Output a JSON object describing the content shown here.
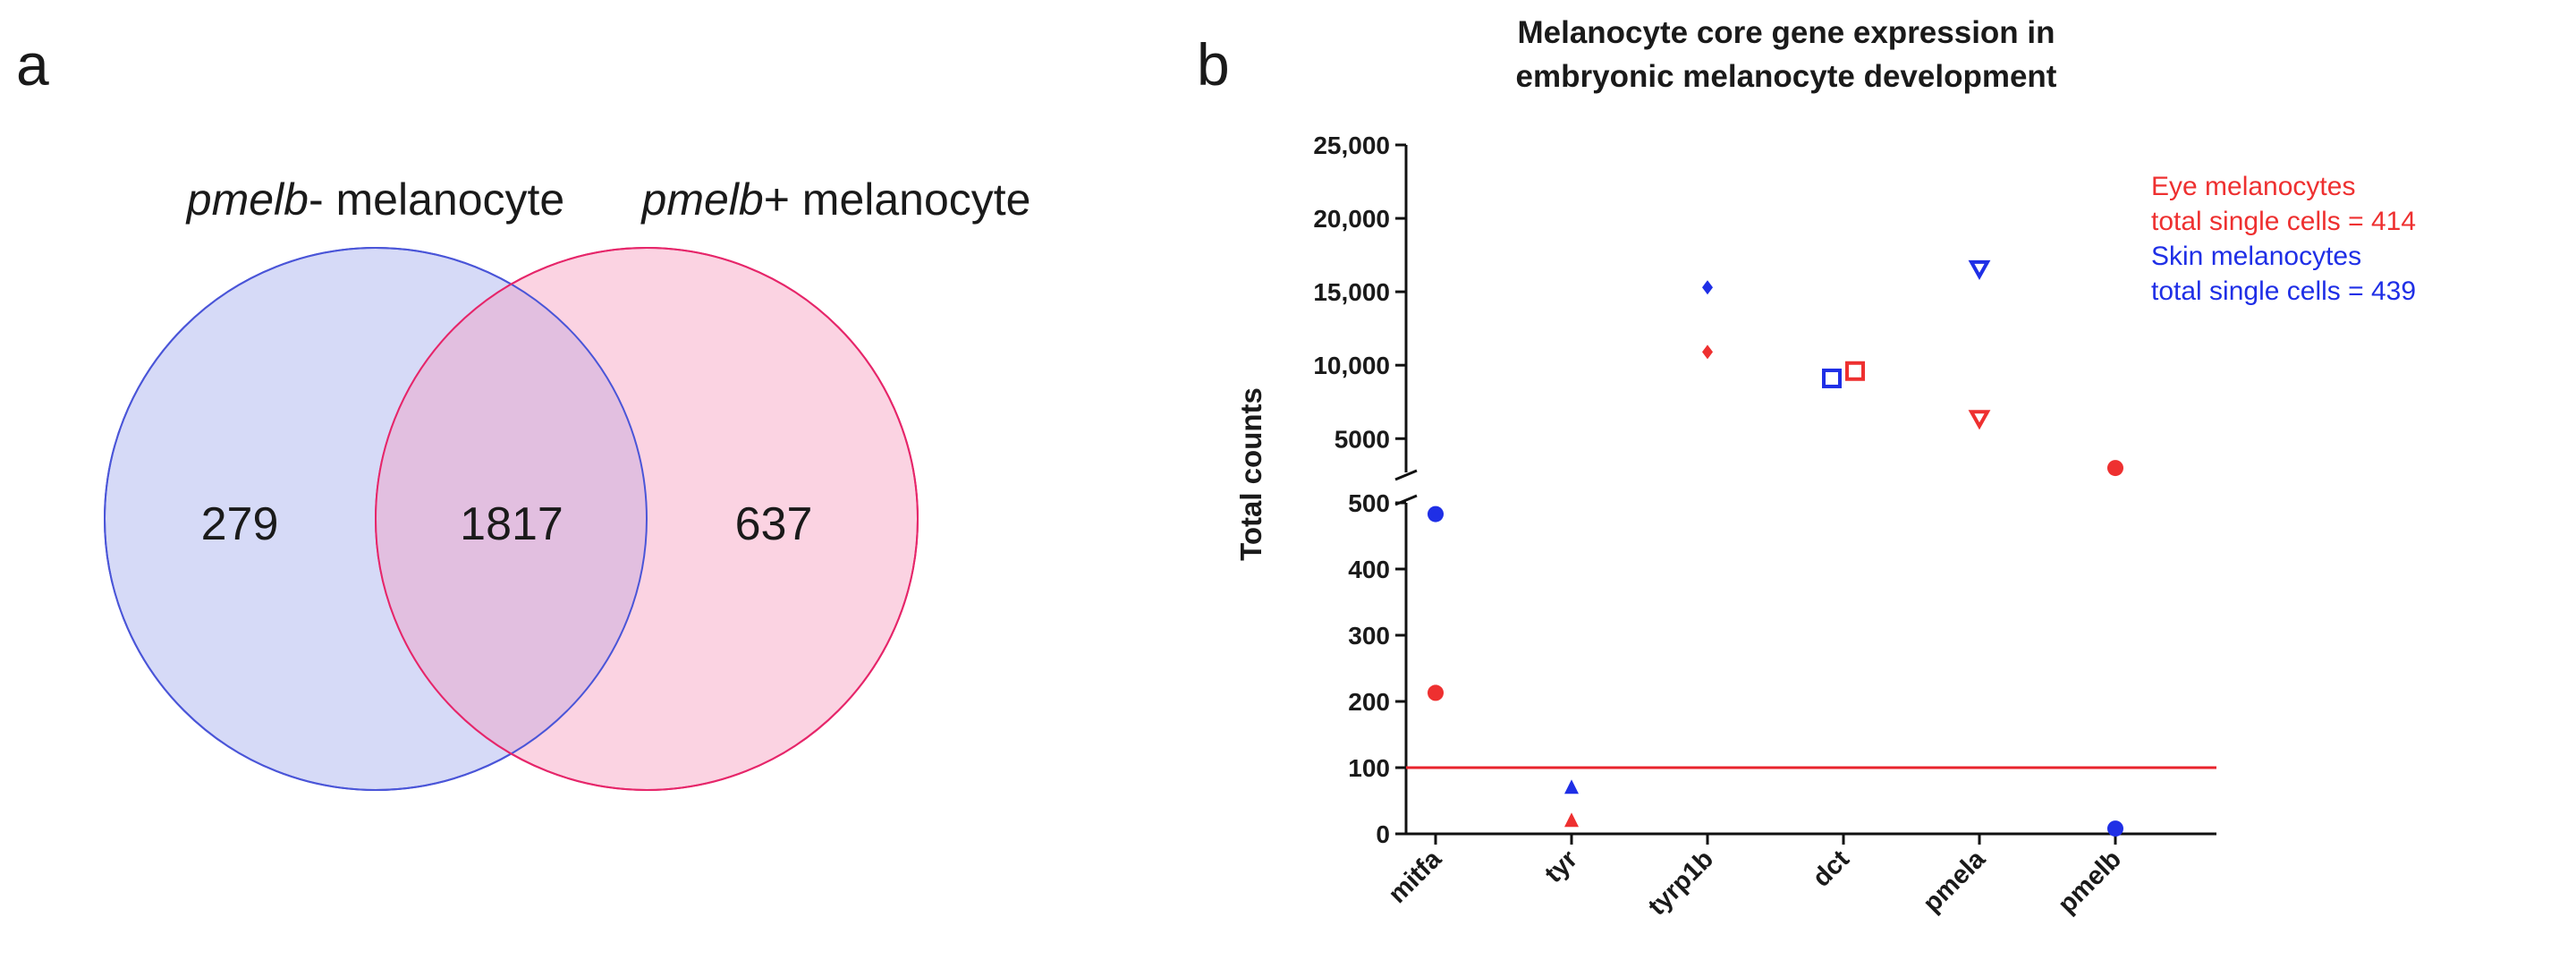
{
  "panel_labels": {
    "a": "a",
    "b": "b"
  },
  "venn": {
    "left_label_italic": "pmelb",
    "left_label_rest": "- melanocyte",
    "right_label_italic": "pmelb",
    "right_label_rest": "+ melanocyte",
    "left_only": "279",
    "overlap": "1817",
    "right_only": "637",
    "left_fill": "#d6daf7",
    "left_stroke": "#4a55d8",
    "right_fill": "#fbd3e2",
    "right_stroke": "#e6266a",
    "overlap_fill": "#e2bfe0"
  },
  "chart_data": {
    "type": "scatter",
    "title_line1": "Melanocyte core gene expression in",
    "title_line2": "embryonic melanocyte development",
    "ylabel": "Total counts",
    "xlabel": "",
    "categories": [
      "mitfa",
      "tyr",
      "tyrp1b",
      "dct",
      "pmela",
      "pmelb"
    ],
    "y_axis_segments": [
      {
        "range": [
          0,
          500
        ],
        "ticks": [
          0,
          100,
          200,
          300,
          400,
          500
        ],
        "tick_labels": [
          "0",
          "100",
          "200",
          "300",
          "400",
          "500"
        ]
      },
      {
        "range": [
          2700,
          25000
        ],
        "ticks": [
          5000,
          10000,
          15000,
          20000,
          25000
        ],
        "tick_labels": [
          "5000",
          "10,000",
          "15,000",
          "20,000",
          "25,000"
        ]
      }
    ],
    "threshold_line": {
      "value": 100,
      "color": "#e8232c"
    },
    "series": [
      {
        "name": "Eye melanocytes",
        "legend_line1": "Eye melanocytes",
        "legend_line2": "total single cells = 414",
        "color": "#ee3030",
        "markers": [
          "circle",
          "triangle",
          "diamond",
          "square-open",
          "triangle-down-open",
          "circle"
        ],
        "values": [
          213,
          20,
          10900,
          9600,
          6400,
          3000
        ]
      },
      {
        "name": "Skin melanocytes",
        "legend_line1": "Skin melanocytes",
        "legend_line2": "total single cells = 439",
        "color": "#1f2fe6",
        "markers": [
          "circle",
          "triangle",
          "diamond",
          "square-open",
          "triangle-down-open",
          "circle"
        ],
        "values": [
          483,
          70,
          15300,
          9100,
          16600,
          8
        ]
      }
    ]
  }
}
